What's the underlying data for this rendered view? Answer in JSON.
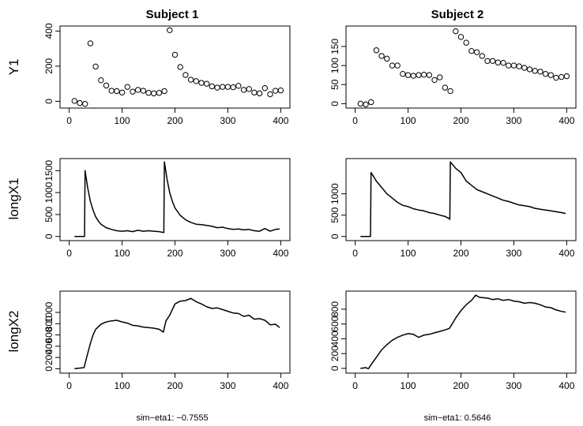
{
  "figure": {
    "columns": [
      {
        "title": "Subject 1",
        "footer": "sim−eta1: −0.7555"
      },
      {
        "title": "Subject 2",
        "footer": "sim−eta1: 0.5646"
      }
    ],
    "row_labels": [
      "Y1",
      "longX1",
      "longX2"
    ]
  },
  "chart_data": [
    {
      "type": "scatter",
      "title": "Subject 1",
      "ylabel": "Y1",
      "xlim": [
        0,
        400
      ],
      "ylim": [
        -20,
        410
      ],
      "xticks": [
        0,
        100,
        200,
        300,
        400
      ],
      "yticks": [
        0,
        200,
        400
      ],
      "points": [
        [
          10,
          2
        ],
        [
          20,
          -10
        ],
        [
          30,
          -15
        ],
        [
          40,
          330
        ],
        [
          50,
          198
        ],
        [
          60,
          120
        ],
        [
          70,
          90
        ],
        [
          80,
          60
        ],
        [
          90,
          58
        ],
        [
          100,
          50
        ],
        [
          110,
          82
        ],
        [
          120,
          55
        ],
        [
          130,
          65
        ],
        [
          140,
          60
        ],
        [
          150,
          48
        ],
        [
          160,
          45
        ],
        [
          170,
          48
        ],
        [
          180,
          58
        ],
        [
          190,
          405
        ],
        [
          200,
          265
        ],
        [
          210,
          195
        ],
        [
          220,
          150
        ],
        [
          230,
          123
        ],
        [
          240,
          115
        ],
        [
          250,
          105
        ],
        [
          260,
          100
        ],
        [
          270,
          85
        ],
        [
          280,
          78
        ],
        [
          290,
          82
        ],
        [
          300,
          82
        ],
        [
          310,
          80
        ],
        [
          320,
          88
        ],
        [
          330,
          65
        ],
        [
          340,
          70
        ],
        [
          350,
          50
        ],
        [
          360,
          45
        ],
        [
          370,
          75
        ],
        [
          380,
          40
        ],
        [
          390,
          60
        ],
        [
          400,
          62
        ]
      ]
    },
    {
      "type": "scatter",
      "title": "Subject 2",
      "ylabel": "",
      "xlim": [
        0,
        400
      ],
      "ylim": [
        -3,
        195
      ],
      "xticks": [
        0,
        100,
        200,
        300,
        400
      ],
      "yticks": [
        0,
        50,
        100,
        150
      ],
      "points": [
        [
          10,
          0
        ],
        [
          20,
          -2
        ],
        [
          30,
          4
        ],
        [
          40,
          140
        ],
        [
          50,
          125
        ],
        [
          60,
          118
        ],
        [
          70,
          100
        ],
        [
          80,
          100
        ],
        [
          90,
          78
        ],
        [
          100,
          75
        ],
        [
          110,
          73
        ],
        [
          120,
          75
        ],
        [
          130,
          76
        ],
        [
          140,
          75
        ],
        [
          150,
          62
        ],
        [
          160,
          69
        ],
        [
          170,
          42
        ],
        [
          180,
          33
        ],
        [
          190,
          190
        ],
        [
          200,
          175
        ],
        [
          210,
          160
        ],
        [
          220,
          138
        ],
        [
          230,
          135
        ],
        [
          240,
          125
        ],
        [
          250,
          112
        ],
        [
          260,
          112
        ],
        [
          270,
          108
        ],
        [
          280,
          107
        ],
        [
          290,
          100
        ],
        [
          300,
          100
        ],
        [
          310,
          98
        ],
        [
          320,
          94
        ],
        [
          330,
          90
        ],
        [
          340,
          86
        ],
        [
          350,
          84
        ],
        [
          360,
          78
        ],
        [
          370,
          75
        ],
        [
          380,
          68
        ],
        [
          390,
          70
        ],
        [
          400,
          72
        ]
      ]
    },
    {
      "type": "line",
      "title": "",
      "ylabel": "longX1",
      "xlim": [
        0,
        400
      ],
      "ylim": [
        -20,
        1700
      ],
      "xticks": [
        0,
        100,
        200,
        300,
        400
      ],
      "yticks": [
        0,
        500,
        1000,
        1500
      ],
      "points": [
        [
          10,
          0
        ],
        [
          29,
          0
        ],
        [
          30,
          1500
        ],
        [
          35,
          1100
        ],
        [
          40,
          800
        ],
        [
          45,
          600
        ],
        [
          50,
          450
        ],
        [
          55,
          350
        ],
        [
          60,
          280
        ],
        [
          70,
          200
        ],
        [
          80,
          160
        ],
        [
          90,
          130
        ],
        [
          100,
          120
        ],
        [
          110,
          130
        ],
        [
          120,
          110
        ],
        [
          130,
          140
        ],
        [
          140,
          120
        ],
        [
          150,
          130
        ],
        [
          160,
          120
        ],
        [
          170,
          110
        ],
        [
          178,
          90
        ],
        [
          179,
          90
        ],
        [
          180,
          1700
        ],
        [
          185,
          1300
        ],
        [
          190,
          1000
        ],
        [
          195,
          800
        ],
        [
          200,
          650
        ],
        [
          210,
          480
        ],
        [
          220,
          380
        ],
        [
          230,
          320
        ],
        [
          240,
          280
        ],
        [
          250,
          270
        ],
        [
          260,
          250
        ],
        [
          270,
          230
        ],
        [
          280,
          200
        ],
        [
          290,
          210
        ],
        [
          300,
          180
        ],
        [
          310,
          160
        ],
        [
          320,
          170
        ],
        [
          330,
          150
        ],
        [
          340,
          160
        ],
        [
          350,
          130
        ],
        [
          360,
          120
        ],
        [
          370,
          180
        ],
        [
          380,
          120
        ],
        [
          390,
          160
        ],
        [
          398,
          170
        ]
      ]
    },
    {
      "type": "line",
      "title": "",
      "ylabel": "",
      "xlim": [
        0,
        400
      ],
      "ylim": [
        -20,
        1750
      ],
      "xticks": [
        0,
        100,
        200,
        300,
        400
      ],
      "yticks": [
        0,
        500,
        1000
      ],
      "points": [
        [
          10,
          0
        ],
        [
          29,
          0
        ],
        [
          30,
          1500
        ],
        [
          40,
          1300
        ],
        [
          50,
          1150
        ],
        [
          60,
          1000
        ],
        [
          70,
          900
        ],
        [
          80,
          800
        ],
        [
          90,
          730
        ],
        [
          100,
          700
        ],
        [
          110,
          650
        ],
        [
          120,
          620
        ],
        [
          130,
          600
        ],
        [
          140,
          560
        ],
        [
          150,
          540
        ],
        [
          160,
          500
        ],
        [
          170,
          470
        ],
        [
          178,
          420
        ],
        [
          179,
          400
        ],
        [
          180,
          1750
        ],
        [
          190,
          1600
        ],
        [
          200,
          1500
        ],
        [
          210,
          1300
        ],
        [
          220,
          1200
        ],
        [
          230,
          1100
        ],
        [
          240,
          1050
        ],
        [
          250,
          1000
        ],
        [
          260,
          950
        ],
        [
          270,
          900
        ],
        [
          280,
          850
        ],
        [
          290,
          820
        ],
        [
          300,
          780
        ],
        [
          310,
          740
        ],
        [
          320,
          720
        ],
        [
          330,
          700
        ],
        [
          340,
          660
        ],
        [
          350,
          640
        ],
        [
          360,
          620
        ],
        [
          370,
          600
        ],
        [
          380,
          580
        ],
        [
          390,
          560
        ],
        [
          398,
          540
        ]
      ]
    },
    {
      "type": "line",
      "title": "",
      "ylabel": "longX2",
      "xlim": [
        0,
        400
      ],
      "ylim": [
        -20,
        1320
      ],
      "xticks": [
        0,
        100,
        200,
        300,
        400
      ],
      "yticks": [
        0,
        200,
        400,
        600,
        800,
        1000
      ],
      "points": [
        [
          10,
          0
        ],
        [
          28,
          20
        ],
        [
          33,
          200
        ],
        [
          40,
          450
        ],
        [
          45,
          600
        ],
        [
          50,
          700
        ],
        [
          60,
          790
        ],
        [
          70,
          830
        ],
        [
          80,
          850
        ],
        [
          90,
          860
        ],
        [
          100,
          830
        ],
        [
          110,
          810
        ],
        [
          120,
          770
        ],
        [
          130,
          760
        ],
        [
          140,
          740
        ],
        [
          150,
          730
        ],
        [
          160,
          720
        ],
        [
          170,
          700
        ],
        [
          178,
          650
        ],
        [
          183,
          850
        ],
        [
          190,
          950
        ],
        [
          200,
          1150
        ],
        [
          210,
          1200
        ],
        [
          220,
          1210
        ],
        [
          230,
          1250
        ],
        [
          240,
          1190
        ],
        [
          250,
          1150
        ],
        [
          260,
          1100
        ],
        [
          270,
          1070
        ],
        [
          280,
          1080
        ],
        [
          290,
          1050
        ],
        [
          300,
          1020
        ],
        [
          310,
          990
        ],
        [
          320,
          980
        ],
        [
          330,
          930
        ],
        [
          340,
          950
        ],
        [
          350,
          880
        ],
        [
          360,
          890
        ],
        [
          370,
          860
        ],
        [
          380,
          780
        ],
        [
          390,
          790
        ],
        [
          398,
          730
        ]
      ]
    },
    {
      "type": "line",
      "title": "",
      "ylabel": "",
      "xlim": [
        0,
        400
      ],
      "ylim": [
        -20,
        1000
      ],
      "xticks": [
        0,
        100,
        200,
        300,
        400
      ],
      "yticks": [
        0,
        200,
        400,
        600,
        800
      ],
      "points": [
        [
          10,
          0
        ],
        [
          20,
          10
        ],
        [
          25,
          -5
        ],
        [
          30,
          50
        ],
        [
          40,
          150
        ],
        [
          50,
          250
        ],
        [
          60,
          320
        ],
        [
          70,
          380
        ],
        [
          80,
          420
        ],
        [
          90,
          450
        ],
        [
          100,
          470
        ],
        [
          110,
          460
        ],
        [
          120,
          420
        ],
        [
          130,
          450
        ],
        [
          140,
          460
        ],
        [
          150,
          480
        ],
        [
          160,
          500
        ],
        [
          170,
          520
        ],
        [
          178,
          540
        ],
        [
          185,
          620
        ],
        [
          190,
          680
        ],
        [
          200,
          780
        ],
        [
          210,
          860
        ],
        [
          220,
          920
        ],
        [
          228,
          990
        ],
        [
          235,
          960
        ],
        [
          250,
          950
        ],
        [
          260,
          930
        ],
        [
          270,
          940
        ],
        [
          280,
          920
        ],
        [
          290,
          930
        ],
        [
          300,
          910
        ],
        [
          310,
          900
        ],
        [
          320,
          880
        ],
        [
          330,
          890
        ],
        [
          340,
          880
        ],
        [
          350,
          860
        ],
        [
          360,
          830
        ],
        [
          370,
          820
        ],
        [
          380,
          790
        ],
        [
          390,
          770
        ],
        [
          398,
          760
        ]
      ]
    }
  ]
}
